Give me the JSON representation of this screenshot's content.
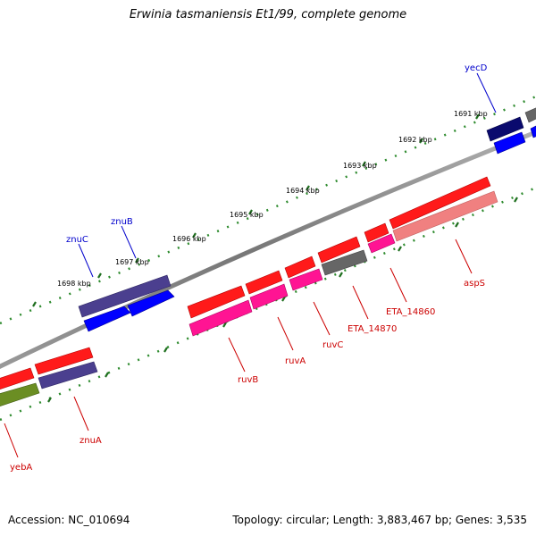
{
  "title": "Erwinia tasmaniensis Et1/99, complete genome",
  "footer": {
    "accession": "Accession: NC_010694",
    "summary": "Topology: circular; Length: 3,883,467 bp; Genes: 3,535"
  },
  "colors": {
    "forward_cds": "#ff0000",
    "reverse_cds": "#ff1493",
    "forward_misc": "#4b3f8f",
    "reverse_misc": "#0000ff",
    "backbone": "#7a7a7a",
    "tick": "#2e8b2e",
    "label_red": "#cc0000",
    "label_blue": "#0000cc"
  },
  "ruler": {
    "scale_labels": [
      "1691 kbp",
      "1692 kbp",
      "1693 kbp",
      "1694 kbp",
      "1695 kbp",
      "1696 kbp",
      "1697 kbp",
      "1698 kbp"
    ]
  },
  "genes": [
    {
      "name": "yecD",
      "color": "blue"
    },
    {
      "name": "znuB",
      "color": "blue"
    },
    {
      "name": "znuC",
      "color": "blue"
    },
    {
      "name": "aspS",
      "color": "red"
    },
    {
      "name": "ETA_14860",
      "color": "red"
    },
    {
      "name": "ETA_14870",
      "color": "red"
    },
    {
      "name": "ruvC",
      "color": "red"
    },
    {
      "name": "ruvA",
      "color": "red"
    },
    {
      "name": "ruvB",
      "color": "red"
    },
    {
      "name": "znuA",
      "color": "red"
    },
    {
      "name": "yebA",
      "color": "red"
    }
  ]
}
